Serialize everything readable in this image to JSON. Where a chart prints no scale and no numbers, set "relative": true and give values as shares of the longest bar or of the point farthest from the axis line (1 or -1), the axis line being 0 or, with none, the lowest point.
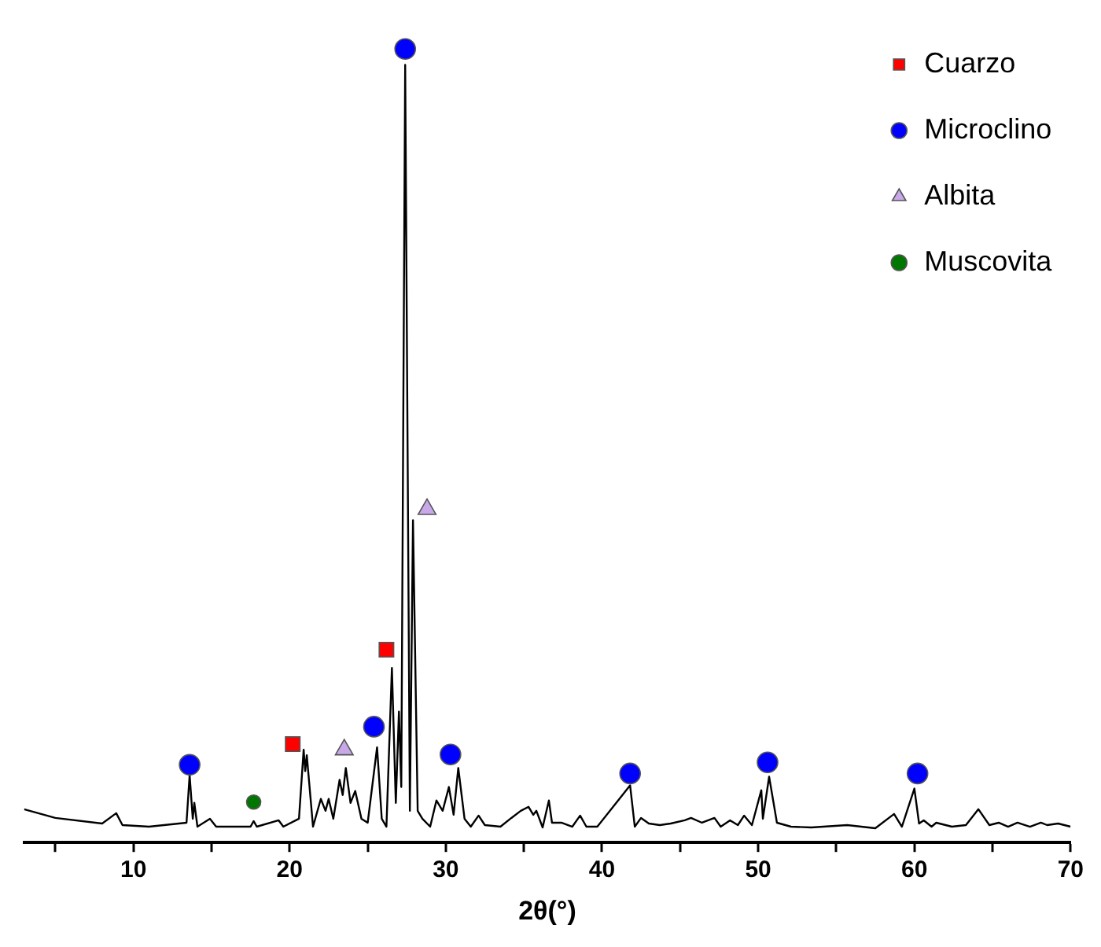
{
  "chart_data": {
    "type": "line",
    "xlabel": "2θ(°)",
    "relative": true,
    "legend": "top right",
    "grid": false,
    "xlim": [
      3,
      70
    ],
    "xticks": [
      {
        "value": 5,
        "label": null
      },
      10,
      {
        "value": 15,
        "label": null
      },
      20,
      {
        "value": 25,
        "label": null
      },
      30,
      {
        "value": 35,
        "label": null
      },
      40,
      {
        "value": 45,
        "label": null
      },
      50,
      {
        "value": 55,
        "label": null
      },
      60,
      {
        "value": 65,
        "label": null
      },
      70
    ],
    "series": [
      {
        "color": "#000000",
        "marker": "none",
        "x": [
          3,
          5,
          8,
          8.9,
          9.3,
          11,
          13.4,
          13.6,
          13.8,
          13.9,
          14.1,
          14.9,
          15.3,
          17.5,
          17.7,
          17.9,
          19.3,
          19.6,
          20.6,
          20.9,
          21.0,
          21.1,
          21.5,
          22.0,
          22.3,
          22.5,
          22.8,
          23.2,
          23.4,
          23.6,
          23.9,
          24.2,
          24.6,
          25.0,
          25.6,
          25.9,
          26.2,
          26.55,
          26.8,
          27.0,
          27.15,
          27.4,
          27.7,
          27.9,
          28.2,
          28.5,
          29.0,
          29.4,
          29.8,
          30.2,
          30.5,
          30.8,
          31.2,
          31.6,
          32.1,
          32.5,
          33.5,
          34.2,
          34.8,
          35.3,
          35.6,
          35.8,
          36.2,
          36.6,
          36.8,
          37.4,
          38.1,
          38.6,
          39.0,
          39.7,
          41.8,
          42.1,
          42.5,
          43.0,
          43.7,
          44.4,
          45.3,
          45.7,
          46.4,
          47.2,
          47.6,
          48.2,
          48.7,
          49.1,
          49.6,
          50.2,
          50.3,
          50.7,
          51.2,
          52.1,
          53.4,
          55.7,
          57.5,
          58.7,
          59.2,
          60.0,
          60.3,
          60.6,
          61.1,
          61.4,
          62.4,
          63.3,
          64.1,
          64.8,
          65.4,
          66.0,
          66.6,
          67.4,
          68.1,
          68.5,
          69.2,
          70
        ],
        "values": [
          0.042,
          0.031,
          0.024,
          0.037,
          0.022,
          0.02,
          0.025,
          0.085,
          0.03,
          0.05,
          0.02,
          0.03,
          0.02,
          0.02,
          0.027,
          0.02,
          0.028,
          0.02,
          0.03,
          0.117,
          0.09,
          0.11,
          0.02,
          0.055,
          0.04,
          0.055,
          0.03,
          0.079,
          0.06,
          0.094,
          0.05,
          0.065,
          0.03,
          0.025,
          0.12,
          0.03,
          0.02,
          0.22,
          0.05,
          0.165,
          0.07,
          0.98,
          0.04,
          0.406,
          0.04,
          0.03,
          0.02,
          0.053,
          0.04,
          0.07,
          0.035,
          0.094,
          0.03,
          0.02,
          0.034,
          0.022,
          0.02,
          0.031,
          0.04,
          0.045,
          0.035,
          0.04,
          0.019,
          0.053,
          0.025,
          0.025,
          0.02,
          0.034,
          0.02,
          0.02,
          0.072,
          0.02,
          0.031,
          0.024,
          0.022,
          0.024,
          0.028,
          0.031,
          0.025,
          0.031,
          0.02,
          0.028,
          0.022,
          0.034,
          0.022,
          0.066,
          0.03,
          0.083,
          0.025,
          0.02,
          0.019,
          0.022,
          0.018,
          0.036,
          0.02,
          0.068,
          0.024,
          0.028,
          0.02,
          0.025,
          0.02,
          0.022,
          0.042,
          0.022,
          0.025,
          0.02,
          0.025,
          0.02,
          0.025,
          0.022,
          0.024,
          0.02
        ]
      },
      {
        "type": "scatter",
        "name": "Cuarzo",
        "color": "#ff0000",
        "marker": "square",
        "x": [
          20.2,
          26.2
        ],
        "values": [
          0.124,
          0.243
        ]
      },
      {
        "type": "scatter",
        "name": "Microclino",
        "color": "#0000ff",
        "marker": "circle",
        "x": [
          13.6,
          25.4,
          27.4,
          30.3,
          41.8,
          50.6,
          60.2
        ],
        "values": [
          0.098,
          0.146,
          1.0,
          0.111,
          0.087,
          0.101,
          0.087
        ]
      },
      {
        "type": "scatter",
        "name": "Albita",
        "color": "#c8a8e8",
        "marker": "triangle",
        "x": [
          23.5,
          28.8
        ],
        "values": [
          0.117,
          0.42
        ]
      },
      {
        "type": "scatter",
        "name": "Muscovita",
        "color": "#007700",
        "marker": "circle",
        "x": [
          17.7
        ],
        "values": [
          0.051
        ]
      }
    ]
  }
}
